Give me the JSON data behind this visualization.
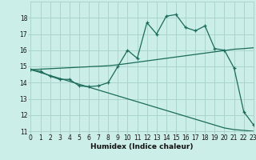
{
  "xlabel": "Humidex (Indice chaleur)",
  "bg_color": "#cceee8",
  "grid_color": "#aad4cc",
  "line_color": "#1a6b5a",
  "x_values": [
    0,
    1,
    2,
    3,
    4,
    5,
    6,
    7,
    8,
    9,
    10,
    11,
    12,
    13,
    14,
    15,
    16,
    17,
    18,
    19,
    20,
    21,
    22,
    23
  ],
  "main_y": [
    14.8,
    14.7,
    14.4,
    14.2,
    14.2,
    13.8,
    13.75,
    13.8,
    14.0,
    15.0,
    16.0,
    15.5,
    17.7,
    17.0,
    18.1,
    18.2,
    17.4,
    17.2,
    17.5,
    16.1,
    16.0,
    14.9,
    12.2,
    11.4
  ],
  "upper_y": [
    14.8,
    14.83,
    14.86,
    14.89,
    14.92,
    14.95,
    14.98,
    15.01,
    15.04,
    15.1,
    15.18,
    15.26,
    15.34,
    15.42,
    15.5,
    15.58,
    15.66,
    15.74,
    15.82,
    15.9,
    15.98,
    16.06,
    16.1,
    16.15
  ],
  "lower_y": [
    14.8,
    14.62,
    14.44,
    14.26,
    14.08,
    13.9,
    13.72,
    13.54,
    13.36,
    13.18,
    13.0,
    12.82,
    12.64,
    12.46,
    12.28,
    12.1,
    11.92,
    11.74,
    11.56,
    11.38,
    11.2,
    11.1,
    11.05,
    11.0
  ],
  "xlim": [
    0,
    23
  ],
  "ylim": [
    11,
    19
  ],
  "yticks": [
    11,
    12,
    13,
    14,
    15,
    16,
    17,
    18
  ],
  "xticks": [
    0,
    1,
    2,
    3,
    4,
    5,
    6,
    7,
    8,
    9,
    10,
    11,
    12,
    13,
    14,
    15,
    16,
    17,
    18,
    19,
    20,
    21,
    22,
    23
  ],
  "xlabel_fontsize": 6.5,
  "tick_fontsize": 5.5
}
